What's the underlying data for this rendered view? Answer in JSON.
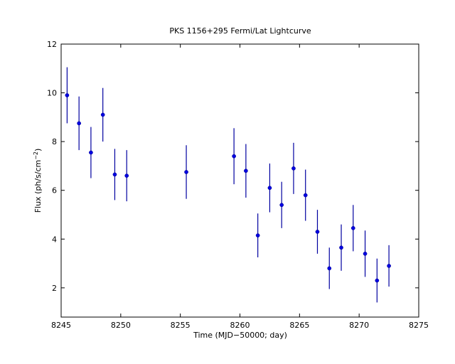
{
  "chart_data": {
    "type": "scatter",
    "title": "PKS 1156+295 Fermi/Lat Lightcurve",
    "xlabel": "Time (MJD−50000; day)",
    "ylabel_main": "Flux (ph/s/cm",
    "ylabel_sup": "−2",
    "ylabel_close": ")",
    "xlim": [
      8245,
      8275
    ],
    "ylim": [
      0.8,
      12
    ],
    "xticks": [
      8245,
      8250,
      8255,
      8260,
      8265,
      8270,
      8275
    ],
    "yticks": [
      2,
      4,
      6,
      8,
      10,
      12
    ],
    "grid": false,
    "series": [
      {
        "marker_color": "#0000e0",
        "errorbar_color": "#0000a0",
        "x": [
          8245.5,
          8246.5,
          8247.5,
          8248.5,
          8249.5,
          8250.5,
          8255.5,
          8259.5,
          8260.5,
          8261.5,
          8262.5,
          8263.5,
          8264.5,
          8265.5,
          8266.5,
          8267.5,
          8268.5,
          8269.5,
          8270.5,
          8271.5,
          8272.5
        ],
        "y": [
          9.9,
          8.75,
          7.55,
          9.1,
          6.65,
          6.6,
          6.75,
          7.4,
          6.8,
          4.15,
          6.1,
          5.4,
          6.9,
          5.8,
          4.3,
          2.8,
          3.65,
          4.45,
          3.4,
          2.3,
          2.9
        ],
        "yerr": [
          1.15,
          1.1,
          1.05,
          1.1,
          1.05,
          1.05,
          1.1,
          1.15,
          1.1,
          0.9,
          1.0,
          0.95,
          1.05,
          1.05,
          0.9,
          0.85,
          0.95,
          0.95,
          0.95,
          0.9,
          0.85
        ]
      }
    ]
  }
}
